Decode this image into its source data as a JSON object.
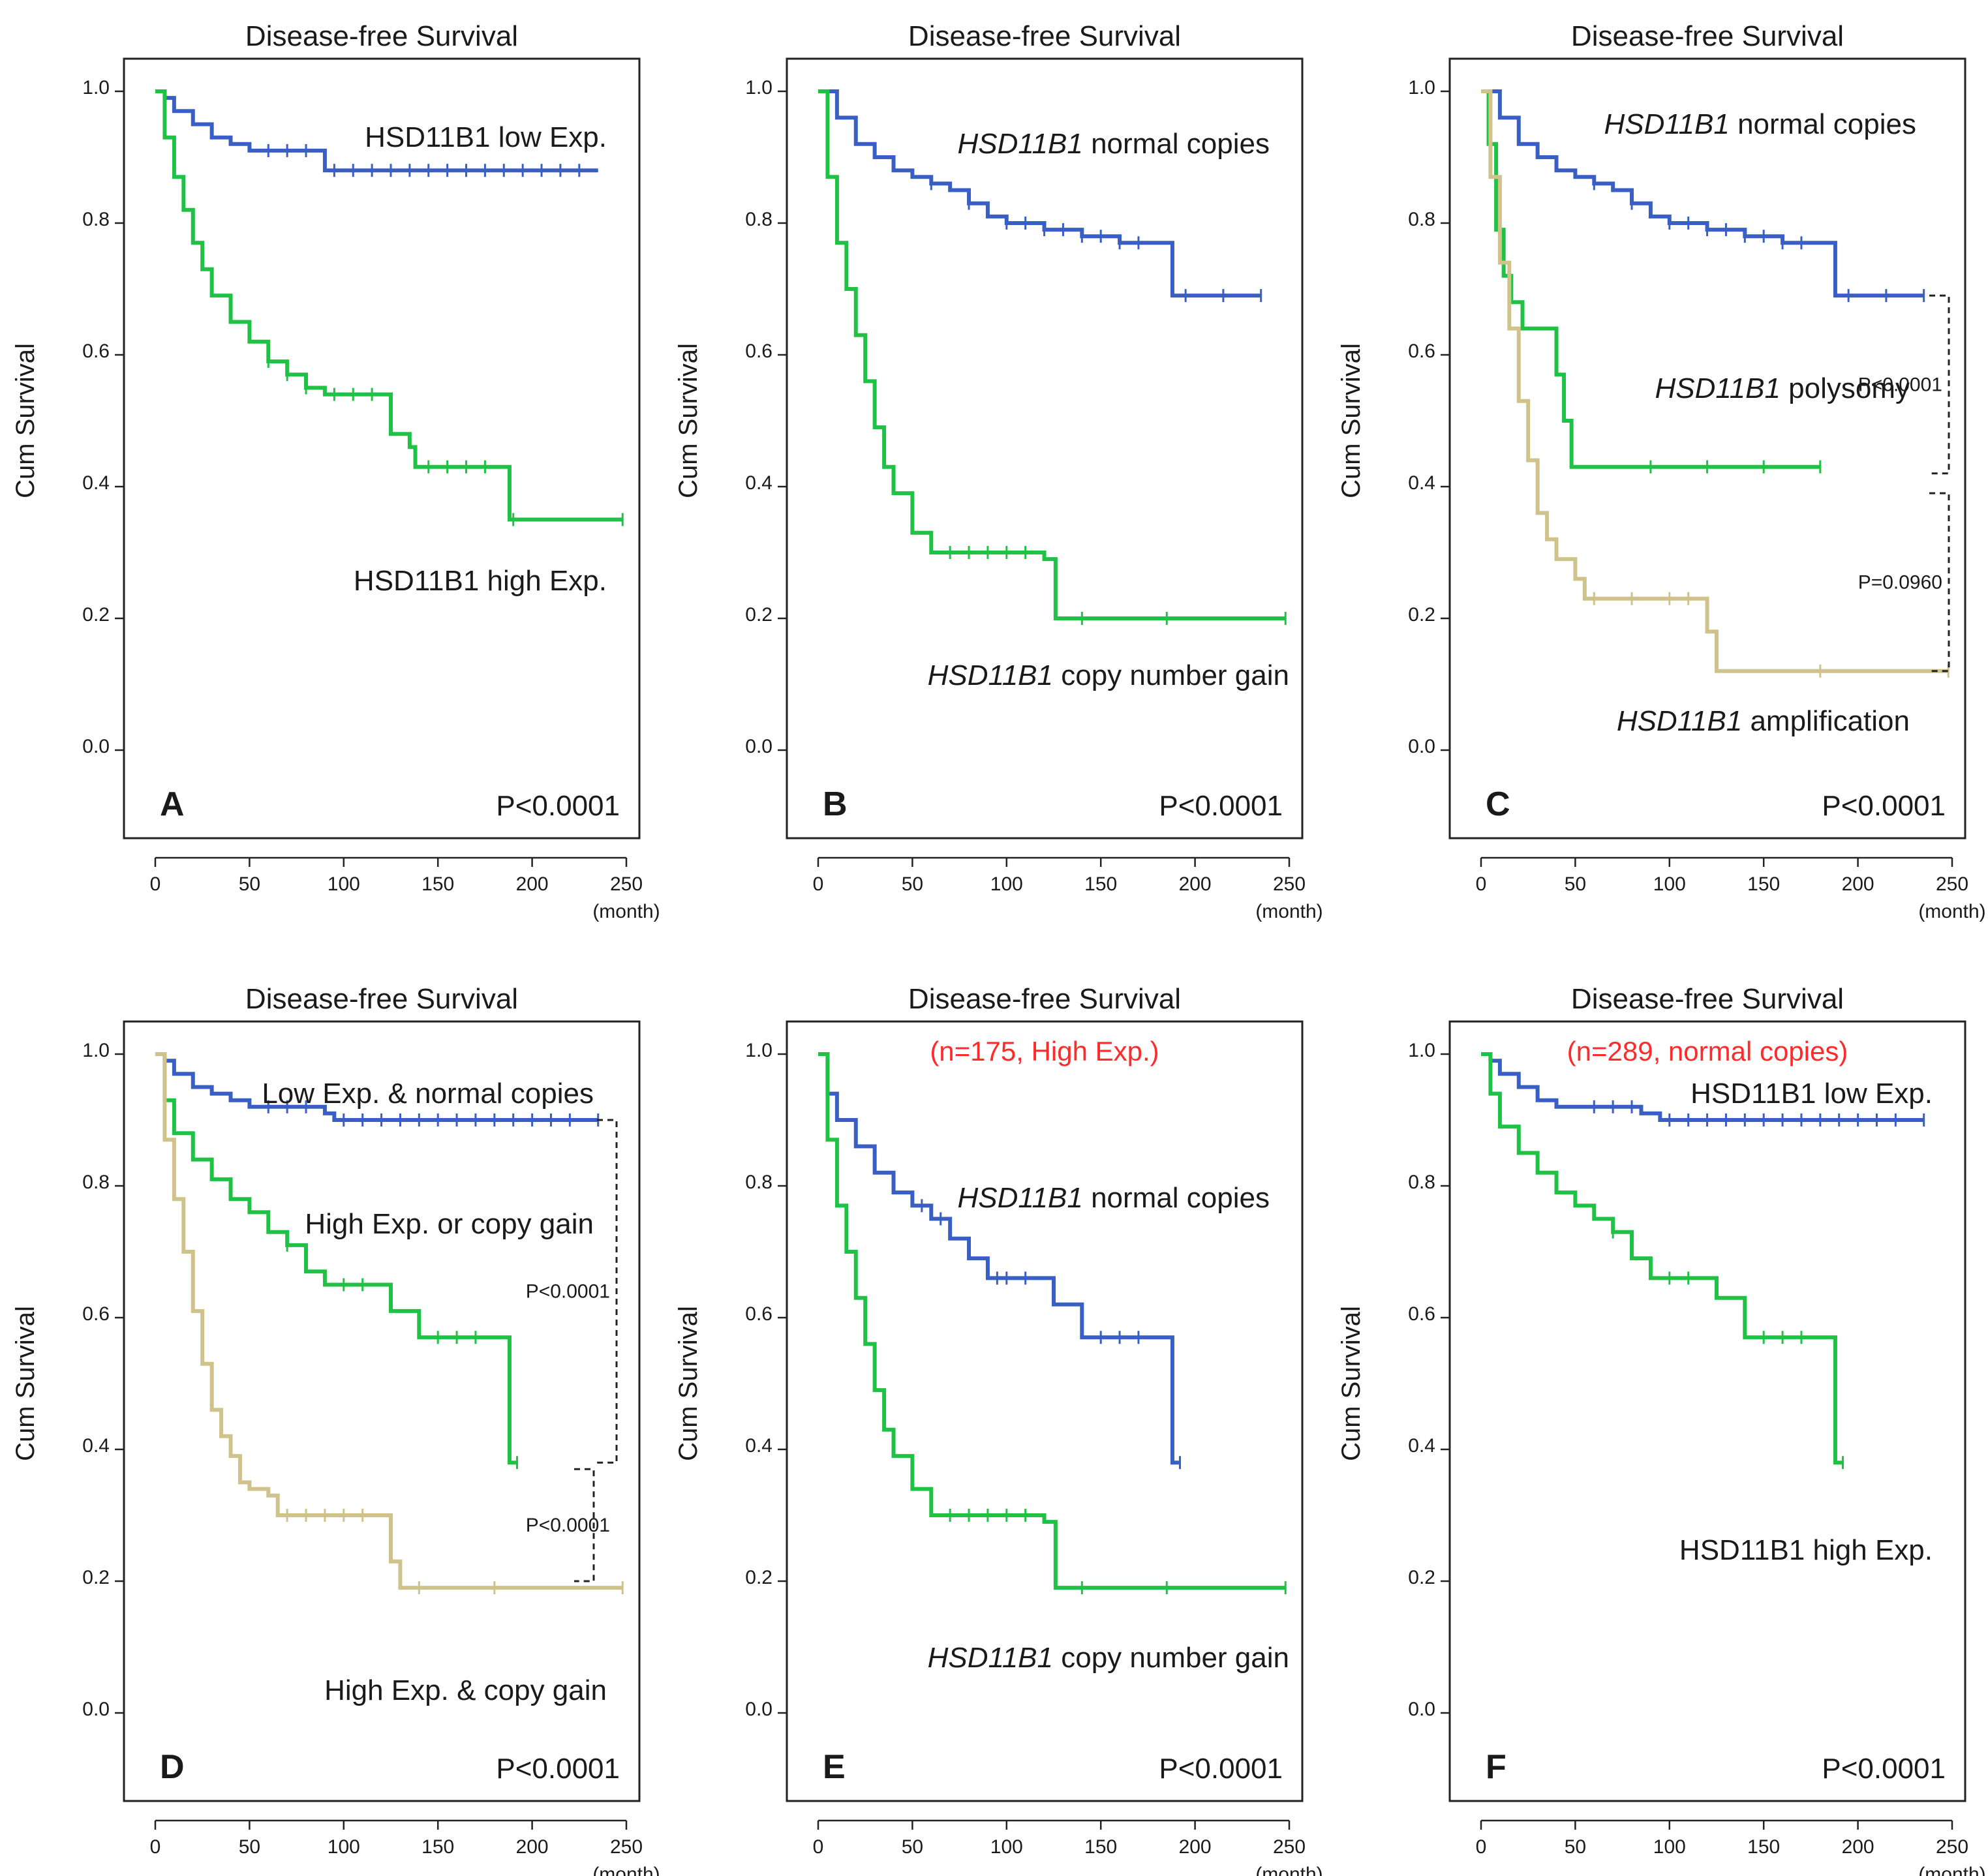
{
  "colors": {
    "blue": "#3a5fc4",
    "green": "#1fc245",
    "tan": "#cfc28a",
    "red": "#ff2a2a"
  },
  "chart_data": [
    {
      "type": "line",
      "id": "A",
      "panel_letter": "A",
      "title": "Disease-free Survival",
      "subtitle": "",
      "xlabel": "(month)",
      "ylabel": "Cum Survival",
      "xlim": [
        0,
        250
      ],
      "ylim": [
        0,
        1
      ],
      "xticks": [
        "0",
        "50",
        "100",
        "150",
        "200",
        "250"
      ],
      "yticks": [
        "0.0",
        "0.2",
        "0.4",
        "0.6",
        "0.8",
        "1.0"
      ],
      "p_value": "P<0.0001",
      "series": [
        {
          "name": "HSD11B1 low Exp.",
          "color": "blue",
          "x": [
            0,
            5,
            10,
            20,
            30,
            40,
            50,
            60,
            90,
            120,
            235
          ],
          "y": [
            1.0,
            0.99,
            0.97,
            0.95,
            0.93,
            0.92,
            0.91,
            0.91,
            0.88,
            0.88,
            0.88
          ],
          "censor_x": [
            60,
            70,
            80,
            95,
            105,
            115,
            125,
            135,
            145,
            155,
            165,
            175,
            185,
            195,
            205,
            215,
            225
          ]
        },
        {
          "name": "HSD11B1 high Exp.",
          "color": "green",
          "x": [
            0,
            5,
            10,
            15,
            20,
            25,
            30,
            40,
            50,
            60,
            70,
            80,
            90,
            100,
            120,
            125,
            135,
            138,
            185,
            188,
            248
          ],
          "y": [
            1.0,
            0.93,
            0.87,
            0.82,
            0.77,
            0.73,
            0.69,
            0.65,
            0.62,
            0.59,
            0.57,
            0.55,
            0.54,
            0.54,
            0.54,
            0.48,
            0.46,
            0.43,
            0.43,
            0.35,
            0.35
          ],
          "censor_x": [
            60,
            70,
            80,
            95,
            105,
            115,
            145,
            155,
            165,
            175,
            190,
            248
          ]
        }
      ],
      "annotations": [
        {
          "text": "HSD11B1 low Exp.",
          "italic_prefix": ""
        },
        {
          "text": "HSD11B1 high Exp.",
          "italic_prefix": ""
        }
      ],
      "brackets": []
    },
    {
      "type": "line",
      "id": "B",
      "panel_letter": "B",
      "title": "Disease-free Survival",
      "subtitle": "",
      "xlabel": "(month)",
      "ylabel": "Cum Survival",
      "xlim": [
        0,
        250
      ],
      "ylim": [
        0,
        1
      ],
      "xticks": [
        "0",
        "50",
        "100",
        "150",
        "200",
        "250"
      ],
      "yticks": [
        "0.0",
        "0.2",
        "0.4",
        "0.6",
        "0.8",
        "1.0"
      ],
      "p_value": "P<0.0001",
      "series": [
        {
          "name": "HSD11B1 normal copies",
          "color": "blue",
          "x": [
            0,
            10,
            20,
            30,
            40,
            50,
            60,
            70,
            80,
            90,
            100,
            120,
            140,
            160,
            185,
            188,
            235
          ],
          "y": [
            1.0,
            0.96,
            0.92,
            0.9,
            0.88,
            0.87,
            0.86,
            0.85,
            0.83,
            0.81,
            0.8,
            0.79,
            0.78,
            0.77,
            0.77,
            0.69,
            0.69
          ],
          "censor_x": [
            60,
            80,
            100,
            110,
            120,
            130,
            140,
            150,
            160,
            170,
            195,
            215,
            235
          ]
        },
        {
          "name": "HSD11B1 copy number gain",
          "color": "green",
          "x": [
            0,
            5,
            10,
            15,
            20,
            25,
            30,
            35,
            40,
            50,
            60,
            70,
            120,
            126,
            140,
            248
          ],
          "y": [
            1.0,
            0.87,
            0.77,
            0.7,
            0.63,
            0.56,
            0.49,
            0.43,
            0.39,
            0.33,
            0.3,
            0.3,
            0.29,
            0.2,
            0.2,
            0.2
          ],
          "censor_x": [
            70,
            80,
            90,
            100,
            110,
            140,
            185,
            248
          ]
        }
      ],
      "annotations": [
        {
          "text": " normal copies",
          "italic_prefix": "HSD11B1"
        },
        {
          "text": " copy number gain",
          "italic_prefix": "HSD11B1"
        }
      ],
      "brackets": []
    },
    {
      "type": "line",
      "id": "C",
      "panel_letter": "C",
      "title": "Disease-free Survival",
      "subtitle": "",
      "xlabel": "(month)",
      "ylabel": "Cum Survival",
      "xlim": [
        0,
        250
      ],
      "ylim": [
        0,
        1
      ],
      "xticks": [
        "0",
        "50",
        "100",
        "150",
        "200",
        "250"
      ],
      "yticks": [
        "0.0",
        "0.2",
        "0.4",
        "0.6",
        "0.8",
        "1.0"
      ],
      "p_value": "P<0.0001",
      "series": [
        {
          "name": "HSD11B1 normal copies",
          "color": "blue",
          "x": [
            0,
            10,
            20,
            30,
            40,
            50,
            60,
            70,
            80,
            90,
            100,
            120,
            140,
            160,
            185,
            188,
            235
          ],
          "y": [
            1.0,
            0.96,
            0.92,
            0.9,
            0.88,
            0.87,
            0.86,
            0.85,
            0.83,
            0.81,
            0.8,
            0.79,
            0.78,
            0.77,
            0.77,
            0.69,
            0.69
          ],
          "censor_x": [
            60,
            80,
            100,
            110,
            120,
            130,
            140,
            150,
            160,
            170,
            195,
            215,
            235
          ]
        },
        {
          "name": "HSD11B1 polysomy",
          "color": "green",
          "x": [
            0,
            4,
            8,
            12,
            16,
            22,
            40,
            44,
            48,
            180
          ],
          "y": [
            1.0,
            0.92,
            0.79,
            0.72,
            0.68,
            0.64,
            0.57,
            0.5,
            0.43,
            0.43
          ],
          "censor_x": [
            90,
            120,
            150,
            180
          ]
        },
        {
          "name": "HSD11B1 amplification",
          "color": "tan",
          "x": [
            0,
            5,
            10,
            15,
            20,
            25,
            30,
            35,
            40,
            50,
            55,
            60,
            120,
            125,
            130,
            248
          ],
          "y": [
            1.0,
            0.87,
            0.74,
            0.64,
            0.53,
            0.44,
            0.36,
            0.32,
            0.29,
            0.26,
            0.23,
            0.23,
            0.18,
            0.12,
            0.12,
            0.12
          ],
          "censor_x": [
            60,
            80,
            100,
            110,
            180,
            248
          ]
        }
      ],
      "annotations": [
        {
          "text": " normal copies",
          "italic_prefix": "HSD11B1"
        },
        {
          "text": " polysomy",
          "italic_prefix": "HSD11B1"
        },
        {
          "text": " amplification",
          "italic_prefix": "HSD11B1"
        }
      ],
      "brackets": [
        {
          "label": "P<0.0001",
          "y_top": 0.69,
          "y_bottom": 0.42
        },
        {
          "label": "P=0.0960",
          "y_top": 0.39,
          "y_bottom": 0.12
        }
      ]
    },
    {
      "type": "line",
      "id": "D",
      "panel_letter": "D",
      "title": "Disease-free Survival",
      "subtitle": "",
      "xlabel": "(month)",
      "ylabel": "Cum Survival",
      "xlim": [
        0,
        250
      ],
      "ylim": [
        0,
        1
      ],
      "xticks": [
        "0",
        "50",
        "100",
        "150",
        "200",
        "250"
      ],
      "yticks": [
        "0.0",
        "0.2",
        "0.4",
        "0.6",
        "0.8",
        "1.0"
      ],
      "p_value": "P<0.0001",
      "series": [
        {
          "name": "Low Exp. & normal copies",
          "color": "blue",
          "x": [
            0,
            5,
            10,
            20,
            30,
            40,
            50,
            60,
            90,
            95,
            235
          ],
          "y": [
            1.0,
            0.99,
            0.97,
            0.95,
            0.94,
            0.93,
            0.92,
            0.92,
            0.91,
            0.9,
            0.9
          ],
          "censor_x": [
            60,
            70,
            80,
            100,
            110,
            120,
            130,
            140,
            150,
            160,
            170,
            180,
            190,
            200,
            210,
            220,
            235
          ]
        },
        {
          "name": "High Exp. or copy gain",
          "color": "green",
          "x": [
            0,
            5,
            10,
            20,
            30,
            40,
            50,
            60,
            70,
            80,
            90,
            120,
            125,
            138,
            140,
            185,
            188,
            192
          ],
          "y": [
            1.0,
            0.93,
            0.88,
            0.84,
            0.81,
            0.78,
            0.76,
            0.73,
            0.71,
            0.67,
            0.65,
            0.65,
            0.61,
            0.61,
            0.57,
            0.57,
            0.38,
            0.38
          ],
          "censor_x": [
            70,
            100,
            110,
            150,
            160,
            170,
            192
          ]
        },
        {
          "name": "High Exp. & copy gain",
          "color": "tan",
          "x": [
            0,
            5,
            10,
            15,
            20,
            25,
            30,
            35,
            40,
            45,
            50,
            60,
            65,
            120,
            125,
            130,
            248
          ],
          "y": [
            1.0,
            0.87,
            0.78,
            0.7,
            0.61,
            0.53,
            0.46,
            0.42,
            0.39,
            0.35,
            0.34,
            0.33,
            0.3,
            0.3,
            0.23,
            0.19,
            0.19
          ],
          "censor_x": [
            70,
            80,
            90,
            100,
            110,
            140,
            180,
            248
          ]
        }
      ],
      "annotations": [
        {
          "text": "Low Exp. & normal copies",
          "italic_prefix": ""
        },
        {
          "text": "High Exp. or copy gain",
          "italic_prefix": ""
        },
        {
          "text": "High Exp. & copy gain",
          "italic_prefix": ""
        }
      ],
      "brackets": [
        {
          "label": "P<0.0001",
          "y_top": 0.9,
          "y_bottom": 0.38
        },
        {
          "label": "P<0.0001",
          "y_top": 0.37,
          "y_bottom": 0.2
        }
      ]
    },
    {
      "type": "line",
      "id": "E",
      "panel_letter": "E",
      "title": "Disease-free Survival",
      "subtitle": "(n=175, High Exp.)",
      "xlabel": "(month)",
      "ylabel": "Cum Survival",
      "xlim": [
        0,
        250
      ],
      "ylim": [
        0,
        1
      ],
      "xticks": [
        "0",
        "50",
        "100",
        "150",
        "200",
        "250"
      ],
      "yticks": [
        "0.0",
        "0.2",
        "0.4",
        "0.6",
        "0.8",
        "1.0"
      ],
      "p_value": "P<0.0001",
      "series": [
        {
          "name": "HSD11B1 normal copies",
          "color": "blue",
          "x": [
            0,
            5,
            10,
            20,
            30,
            40,
            50,
            60,
            70,
            80,
            90,
            120,
            125,
            135,
            140,
            185,
            188,
            192
          ],
          "y": [
            1.0,
            0.94,
            0.9,
            0.86,
            0.82,
            0.79,
            0.77,
            0.75,
            0.72,
            0.69,
            0.66,
            0.66,
            0.62,
            0.62,
            0.57,
            0.57,
            0.38,
            0.38
          ],
          "censor_x": [
            55,
            65,
            95,
            100,
            110,
            150,
            160,
            170,
            192
          ]
        },
        {
          "name": "HSD11B1 copy number gain",
          "color": "green",
          "x": [
            0,
            5,
            10,
            15,
            20,
            25,
            30,
            35,
            40,
            50,
            60,
            70,
            120,
            126,
            140,
            248
          ],
          "y": [
            1.0,
            0.87,
            0.77,
            0.7,
            0.63,
            0.56,
            0.49,
            0.43,
            0.39,
            0.34,
            0.3,
            0.3,
            0.29,
            0.19,
            0.19,
            0.19
          ],
          "censor_x": [
            70,
            80,
            90,
            100,
            110,
            140,
            185,
            248
          ]
        }
      ],
      "annotations": [
        {
          "text": " normal copies",
          "italic_prefix": "HSD11B1"
        },
        {
          "text": " copy number gain",
          "italic_prefix": "HSD11B1"
        }
      ],
      "brackets": []
    },
    {
      "type": "line",
      "id": "F",
      "panel_letter": "F",
      "title": "Disease-free Survival",
      "subtitle": "(n=289, normal copies)",
      "xlabel": "(month)",
      "ylabel": "Cum Survival",
      "xlim": [
        0,
        250
      ],
      "ylim": [
        0,
        1
      ],
      "xticks": [
        "0",
        "50",
        "100",
        "150",
        "200",
        "250"
      ],
      "yticks": [
        "0.0",
        "0.2",
        "0.4",
        "0.6",
        "0.8",
        "1.0"
      ],
      "p_value": "P<0.0001",
      "series": [
        {
          "name": "HSD11B1 low Exp.",
          "color": "blue",
          "x": [
            0,
            5,
            10,
            20,
            30,
            40,
            50,
            60,
            85,
            95,
            235
          ],
          "y": [
            1.0,
            0.99,
            0.97,
            0.95,
            0.93,
            0.92,
            0.92,
            0.92,
            0.91,
            0.9,
            0.9
          ],
          "censor_x": [
            60,
            70,
            80,
            100,
            110,
            120,
            130,
            140,
            150,
            160,
            170,
            180,
            190,
            200,
            210,
            220,
            235
          ]
        },
        {
          "name": "HSD11B1 high Exp.",
          "color": "green",
          "x": [
            0,
            5,
            10,
            20,
            30,
            40,
            50,
            60,
            70,
            80,
            90,
            120,
            125,
            138,
            140,
            185,
            188,
            192
          ],
          "y": [
            1.0,
            0.94,
            0.89,
            0.85,
            0.82,
            0.79,
            0.77,
            0.75,
            0.73,
            0.69,
            0.66,
            0.66,
            0.63,
            0.63,
            0.57,
            0.57,
            0.38,
            0.38
          ],
          "censor_x": [
            70,
            100,
            110,
            150,
            160,
            170,
            192
          ]
        }
      ],
      "annotations": [
        {
          "text": "HSD11B1 low Exp.",
          "italic_prefix": ""
        },
        {
          "text": "HSD11B1 high Exp.",
          "italic_prefix": ""
        }
      ],
      "brackets": []
    }
  ]
}
